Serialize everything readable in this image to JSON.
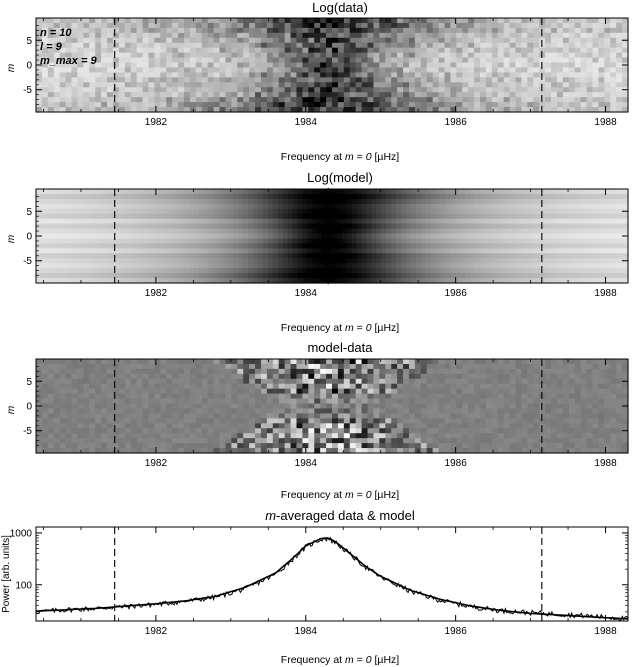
{
  "chart_data": [
    {
      "type": "heatmap",
      "title": "Log(data)",
      "xlabel": "Frequency at m = 0 [µHz]",
      "ylabel": "m",
      "xlim": [
        1980.4,
        1988.3
      ],
      "ylim": [
        -9.5,
        9.5
      ],
      "x_ticks": [
        "1982",
        "1984",
        "1986",
        "1988"
      ],
      "x_tick_values": [
        1982,
        1984,
        1986,
        1988
      ],
      "y_ticks": [
        "5",
        "0",
        "-5"
      ],
      "y_tick_values": [
        5,
        0,
        -5
      ],
      "dashed_lines_x": [
        1981.45,
        1987.15
      ],
      "annotation": [
        "n = 10",
        "l = 9",
        "m_max = 9"
      ],
      "ridge_center": 1984.3,
      "colormap": "grayscale, dark = high"
    },
    {
      "type": "heatmap",
      "title": "Log(model)",
      "xlabel": "Frequency at m = 0 [µHz]",
      "ylabel": "m",
      "xlim": [
        1980.4,
        1988.3
      ],
      "ylim": [
        -9.5,
        9.5
      ],
      "x_ticks": [
        "1982",
        "1984",
        "1986",
        "1988"
      ],
      "x_tick_values": [
        1982,
        1984,
        1986,
        1988
      ],
      "y_ticks": [
        "5",
        "0",
        "-5"
      ],
      "y_tick_values": [
        5,
        0,
        -5
      ],
      "dashed_lines_x": [
        1981.45,
        1987.15
      ],
      "mode_frequencies": {
        "m": [
          -9,
          -8,
          -7,
          -6,
          -5,
          -4,
          -3,
          -2,
          -1,
          0,
          1,
          2,
          3,
          4,
          5,
          6,
          7,
          8,
          9
        ],
        "freq": [
          1984.3,
          1984.32,
          1984.28,
          1984.33,
          1984.29,
          1984.31,
          1984.27,
          1984.32,
          1984.3,
          1984.26,
          1984.31,
          1984.29,
          1984.33,
          1984.3,
          1984.28,
          1984.32,
          1984.29,
          1984.31,
          1984.3
        ]
      },
      "ridge_center": 1984.3,
      "colormap": "grayscale, dark = high"
    },
    {
      "type": "heatmap",
      "title": "model-data",
      "xlabel": "Frequency at m = 0 [µHz]",
      "ylabel": "m",
      "xlim": [
        1980.4,
        1988.3
      ],
      "ylim": [
        -9.5,
        9.5
      ],
      "x_ticks": [
        "1982",
        "1984",
        "1986",
        "1988"
      ],
      "x_tick_values": [
        1982,
        1984,
        1986,
        1988
      ],
      "y_ticks": [
        "5",
        "0",
        "-5"
      ],
      "y_tick_values": [
        5,
        0,
        -5
      ],
      "dashed_lines_x": [
        1981.45,
        1987.15
      ],
      "colormap": "grayscale, mid-gray = 0"
    },
    {
      "type": "line",
      "title": "m-averaged data & model",
      "xlabel": "Frequency at m = 0 [µHz]",
      "ylabel": "Power [arb. units]",
      "xlim": [
        1980.4,
        1988.3
      ],
      "ylim": [
        20,
        1300
      ],
      "y_scale": "log",
      "x_ticks": [
        "1982",
        "1984",
        "1986",
        "1988"
      ],
      "x_tick_values": [
        1982,
        1984,
        1986,
        1988
      ],
      "y_ticks": [
        "1000",
        "100"
      ],
      "y_tick_values": [
        1000,
        100
      ],
      "dashed_lines_x": [
        1981.45,
        1987.15
      ],
      "series": [
        {
          "x": [
            1980.4,
            1980.8,
            1981.2,
            1981.6,
            1982.0,
            1982.4,
            1982.8,
            1983.2,
            1983.6,
            1983.8,
            1984.0,
            1984.2,
            1984.3,
            1984.4,
            1984.6,
            1984.8,
            1985.0,
            1985.4,
            1985.8,
            1986.2,
            1986.6,
            1987.0,
            1987.4,
            1987.8,
            1988.3
          ],
          "values": [
            30,
            33,
            35,
            38,
            42,
            48,
            58,
            85,
            160,
            290,
            540,
            760,
            780,
            650,
            380,
            220,
            140,
            75,
            50,
            38,
            32,
            29,
            27,
            25,
            22
          ]
        },
        {
          "x": [
            1980.4,
            1980.8,
            1981.2,
            1981.6,
            1982.0,
            1982.4,
            1982.8,
            1983.2,
            1983.6,
            1983.8,
            1984.0,
            1984.2,
            1984.3,
            1984.4,
            1984.6,
            1984.8,
            1985.0,
            1985.4,
            1985.8,
            1986.2,
            1986.6,
            1987.0,
            1987.4,
            1987.8,
            1988.3
          ],
          "values": [
            31,
            33,
            35,
            39,
            43,
            49,
            60,
            90,
            170,
            300,
            560,
            780,
            800,
            670,
            390,
            225,
            145,
            78,
            52,
            39,
            32,
            28,
            26,
            24,
            22
          ]
        }
      ]
    }
  ]
}
